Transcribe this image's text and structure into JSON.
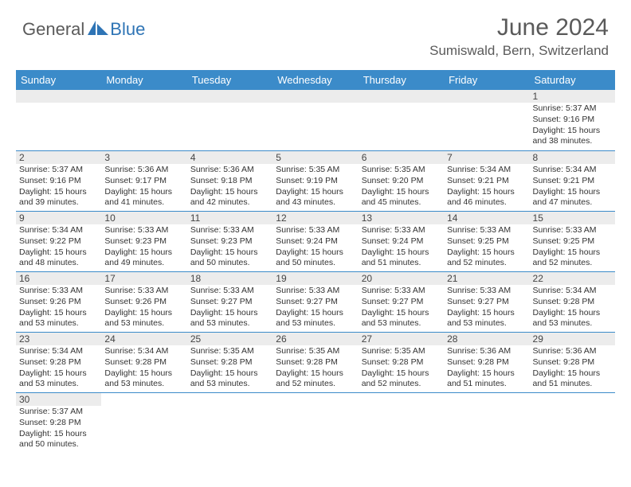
{
  "logo": {
    "text_general": "General",
    "text_blue": "Blue",
    "icon_color": "#2e74b5"
  },
  "header": {
    "month_title": "June 2024",
    "location": "Sumiswald, Bern, Switzerland"
  },
  "colors": {
    "header_bg": "#3b8bc9",
    "header_text": "#ffffff",
    "daynum_bg": "#ececec",
    "cell_border": "#3b8bc9",
    "text": "#333333",
    "logo_gray": "#5a5a5a",
    "logo_blue": "#2e74b5"
  },
  "columns": [
    "Sunday",
    "Monday",
    "Tuesday",
    "Wednesday",
    "Thursday",
    "Friday",
    "Saturday"
  ],
  "weeks": [
    [
      null,
      null,
      null,
      null,
      null,
      null,
      {
        "n": "1",
        "sr": "5:37 AM",
        "ss": "9:16 PM",
        "dl": "15 hours and 38 minutes."
      }
    ],
    [
      {
        "n": "2",
        "sr": "5:37 AM",
        "ss": "9:16 PM",
        "dl": "15 hours and 39 minutes."
      },
      {
        "n": "3",
        "sr": "5:36 AM",
        "ss": "9:17 PM",
        "dl": "15 hours and 41 minutes."
      },
      {
        "n": "4",
        "sr": "5:36 AM",
        "ss": "9:18 PM",
        "dl": "15 hours and 42 minutes."
      },
      {
        "n": "5",
        "sr": "5:35 AM",
        "ss": "9:19 PM",
        "dl": "15 hours and 43 minutes."
      },
      {
        "n": "6",
        "sr": "5:35 AM",
        "ss": "9:20 PM",
        "dl": "15 hours and 45 minutes."
      },
      {
        "n": "7",
        "sr": "5:34 AM",
        "ss": "9:21 PM",
        "dl": "15 hours and 46 minutes."
      },
      {
        "n": "8",
        "sr": "5:34 AM",
        "ss": "9:21 PM",
        "dl": "15 hours and 47 minutes."
      }
    ],
    [
      {
        "n": "9",
        "sr": "5:34 AM",
        "ss": "9:22 PM",
        "dl": "15 hours and 48 minutes."
      },
      {
        "n": "10",
        "sr": "5:33 AM",
        "ss": "9:23 PM",
        "dl": "15 hours and 49 minutes."
      },
      {
        "n": "11",
        "sr": "5:33 AM",
        "ss": "9:23 PM",
        "dl": "15 hours and 50 minutes."
      },
      {
        "n": "12",
        "sr": "5:33 AM",
        "ss": "9:24 PM",
        "dl": "15 hours and 50 minutes."
      },
      {
        "n": "13",
        "sr": "5:33 AM",
        "ss": "9:24 PM",
        "dl": "15 hours and 51 minutes."
      },
      {
        "n": "14",
        "sr": "5:33 AM",
        "ss": "9:25 PM",
        "dl": "15 hours and 52 minutes."
      },
      {
        "n": "15",
        "sr": "5:33 AM",
        "ss": "9:25 PM",
        "dl": "15 hours and 52 minutes."
      }
    ],
    [
      {
        "n": "16",
        "sr": "5:33 AM",
        "ss": "9:26 PM",
        "dl": "15 hours and 53 minutes."
      },
      {
        "n": "17",
        "sr": "5:33 AM",
        "ss": "9:26 PM",
        "dl": "15 hours and 53 minutes."
      },
      {
        "n": "18",
        "sr": "5:33 AM",
        "ss": "9:27 PM",
        "dl": "15 hours and 53 minutes."
      },
      {
        "n": "19",
        "sr": "5:33 AM",
        "ss": "9:27 PM",
        "dl": "15 hours and 53 minutes."
      },
      {
        "n": "20",
        "sr": "5:33 AM",
        "ss": "9:27 PM",
        "dl": "15 hours and 53 minutes."
      },
      {
        "n": "21",
        "sr": "5:33 AM",
        "ss": "9:27 PM",
        "dl": "15 hours and 53 minutes."
      },
      {
        "n": "22",
        "sr": "5:34 AM",
        "ss": "9:28 PM",
        "dl": "15 hours and 53 minutes."
      }
    ],
    [
      {
        "n": "23",
        "sr": "5:34 AM",
        "ss": "9:28 PM",
        "dl": "15 hours and 53 minutes."
      },
      {
        "n": "24",
        "sr": "5:34 AM",
        "ss": "9:28 PM",
        "dl": "15 hours and 53 minutes."
      },
      {
        "n": "25",
        "sr": "5:35 AM",
        "ss": "9:28 PM",
        "dl": "15 hours and 53 minutes."
      },
      {
        "n": "26",
        "sr": "5:35 AM",
        "ss": "9:28 PM",
        "dl": "15 hours and 52 minutes."
      },
      {
        "n": "27",
        "sr": "5:35 AM",
        "ss": "9:28 PM",
        "dl": "15 hours and 52 minutes."
      },
      {
        "n": "28",
        "sr": "5:36 AM",
        "ss": "9:28 PM",
        "dl": "15 hours and 51 minutes."
      },
      {
        "n": "29",
        "sr": "5:36 AM",
        "ss": "9:28 PM",
        "dl": "15 hours and 51 minutes."
      }
    ],
    [
      {
        "n": "30",
        "sr": "5:37 AM",
        "ss": "9:28 PM",
        "dl": "15 hours and 50 minutes."
      },
      null,
      null,
      null,
      null,
      null,
      null
    ]
  ],
  "labels": {
    "sunrise": "Sunrise:",
    "sunset": "Sunset:",
    "daylight": "Daylight:"
  }
}
